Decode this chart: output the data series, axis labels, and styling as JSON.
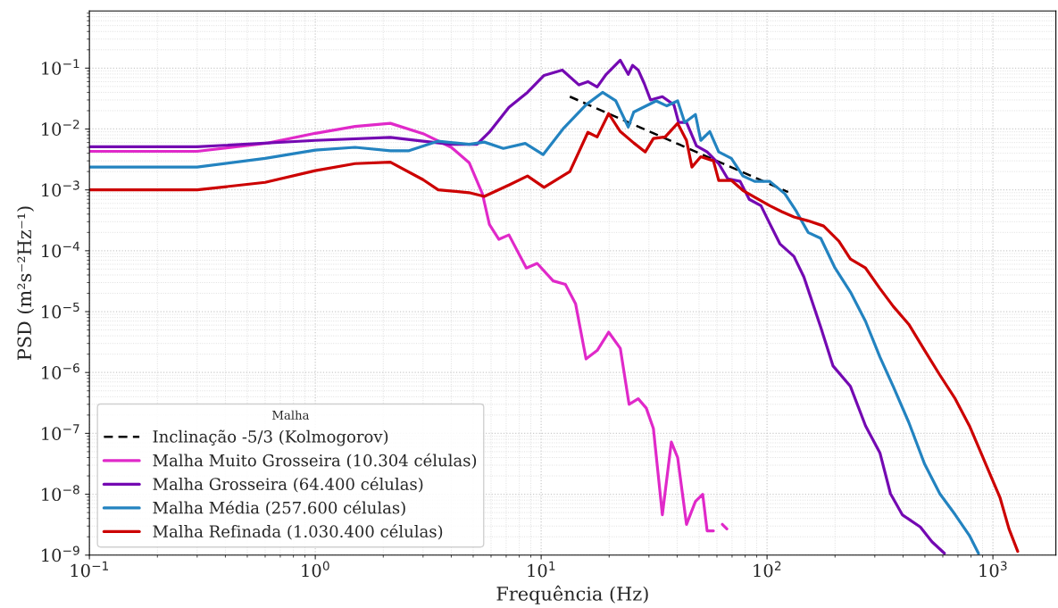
{
  "chart_data": {
    "type": "line",
    "xlabel": "Frequência (Hz)",
    "ylabel": "PSD (m²s⁻²Hz⁻¹)",
    "legend_title": "Malha",
    "legend": "bottom left",
    "grid": true,
    "log": "xy",
    "xlim": [
      0.1,
      1900
    ],
    "ylim": [
      1e-09,
      0.87
    ],
    "xticks": [
      {
        "value": 0.1,
        "label": "10$^{−1}$"
      },
      {
        "value": 1,
        "label": "10$^{0}$"
      },
      {
        "value": 10,
        "label": "10$^{1}$"
      },
      {
        "value": 100,
        "label": "10$^{2}$"
      },
      {
        "value": 1000,
        "label": "10$^{3}$"
      }
    ],
    "yticks": [
      {
        "value": 1e-09,
        "label": "10$^{−9}$"
      },
      {
        "value": 1e-08,
        "label": "10$^{−8}$"
      },
      {
        "value": 1e-07,
        "label": "10$^{−7}$"
      },
      {
        "value": 1e-06,
        "label": "10$^{−6}$"
      },
      {
        "value": 1e-05,
        "label": "10$^{−5}$"
      },
      {
        "value": 0.0001,
        "label": "10$^{−4}$"
      },
      {
        "value": 0.001,
        "label": "10$^{−3}$"
      },
      {
        "value": 0.01,
        "label": "10$^{−2}$"
      },
      {
        "value": 0.1,
        "label": "10$^{−1}$"
      }
    ],
    "series": [
      {
        "name": "Inclinação -5/3 (Kolmogorov)",
        "line_style": "dashed",
        "color": "#000000",
        "x": [
          13.4,
          124
        ],
        "values": [
          0.034,
          0.00092
        ]
      },
      {
        "name": "Malha Muito Grosseira (10.304 células)",
        "line_style": "solid",
        "color": "#e029c9",
        "x": [
          0.1,
          0.3,
          0.62,
          1.0,
          1.5,
          2.15,
          3.0,
          4.0,
          4.8,
          5.5,
          5.9,
          6.5,
          7.2,
          8.6,
          9.6,
          11.3,
          12.8,
          14.2,
          15.8,
          17.7,
          19.9,
          22.4,
          24.5,
          26.9,
          29.2,
          31.4,
          34.4,
          37.7,
          40.2,
          44.0,
          48.2,
          51.9,
          54.3,
          57.9,
          60.5,
          63.4,
          66.4
        ],
        "values": [
          0.0043,
          0.0043,
          0.0059,
          0.0085,
          0.011,
          0.0124,
          0.0084,
          0.005,
          0.0028,
          0.00085,
          0.00027,
          0.000154,
          0.000182,
          5.2e-05,
          6.2e-05,
          3.2e-05,
          2.8e-05,
          1.35e-05,
          1.67e-06,
          2.3e-06,
          4.6e-06,
          2.5e-06,
          3e-07,
          3.7e-07,
          2.6e-07,
          1.2e-07,
          4.6e-09,
          7.2e-08,
          4e-08,
          3.2e-09,
          7.6e-09,
          1e-08,
          2.5e-09,
          2.5e-09,
          null,
          3.2e-09,
          2.7e-09
        ]
      },
      {
        "name": "Malha Grosseira (64.400 células)",
        "line_style": "solid",
        "color": "#7409b2",
        "x": [
          0.1,
          0.3,
          1.0,
          2.15,
          3.0,
          4.0,
          5.2,
          5.9,
          7.2,
          8.7,
          10.3,
          12.4,
          14.7,
          16.1,
          17.7,
          19.4,
          22.4,
          24.3,
          25.4,
          26.9,
          28.6,
          30.5,
          34.4,
          38.7,
          40.6,
          44.0,
          48.7,
          54.3,
          61.1,
          67.0,
          76.0,
          83.4,
          94.0,
          102.8,
          114,
          131.5,
          145.6,
          173,
          196,
          234,
          273,
          316,
          352,
          397,
          477,
          537,
          610
        ],
        "values": [
          0.0051,
          0.0051,
          0.0065,
          0.0073,
          0.0063,
          0.0056,
          0.0056,
          0.0089,
          0.0227,
          0.04,
          0.076,
          0.093,
          0.053,
          0.06,
          0.049,
          0.079,
          0.135,
          0.079,
          0.111,
          0.093,
          0.056,
          0.03,
          0.034,
          0.025,
          0.0128,
          0.0128,
          0.0053,
          0.0042,
          0.0027,
          0.00152,
          0.00138,
          0.0007,
          0.00055,
          0.00028,
          0.00013,
          8.1e-05,
          3.7e-05,
          5.5e-06,
          1.28e-06,
          5.9e-07,
          1.33e-07,
          4.8e-08,
          1.02e-08,
          4.6e-09,
          2.9e-09,
          1.66e-09,
          1.07e-09
        ]
      },
      {
        "name": "Malha Média (257.600 células)",
        "line_style": "solid",
        "color": "#2383c0",
        "x": [
          0.1,
          0.3,
          0.6,
          1.0,
          1.5,
          2.15,
          2.6,
          3.48,
          4.8,
          5.6,
          6.8,
          8.5,
          10.2,
          12.6,
          15.8,
          18.7,
          21.4,
          24.3,
          25.7,
          32.3,
          36.0,
          40.2,
          43.2,
          48.2,
          50.9,
          55.8,
          61.1,
          69.5,
          78.2,
          88.1,
          102.8,
          120,
          135,
          152,
          173,
          200,
          234,
          273,
          316,
          362,
          424,
          499,
          582,
          681,
          787,
          863
        ],
        "values": [
          0.00237,
          0.00237,
          0.0033,
          0.0045,
          0.005,
          0.0044,
          0.0044,
          0.0063,
          0.0056,
          0.0061,
          0.0048,
          0.0058,
          0.0038,
          0.0104,
          0.025,
          0.04,
          0.029,
          0.0108,
          0.019,
          0.029,
          0.024,
          0.029,
          0.0128,
          0.0173,
          0.0065,
          0.0091,
          0.0042,
          0.0033,
          0.00169,
          0.00138,
          0.00138,
          0.00086,
          0.00044,
          0.0002,
          0.00016,
          5.2e-05,
          2.1e-05,
          6.9e-06,
          1.8e-06,
          5.9e-07,
          1.52e-07,
          3.1e-08,
          1.02e-08,
          4.6e-09,
          2.1e-09,
          1.07e-09
        ]
      },
      {
        "name": "Malha Refinada (1.030.400 células)",
        "line_style": "solid",
        "color": "#cc0000",
        "x": [
          0.1,
          0.3,
          0.6,
          1.0,
          1.5,
          2.15,
          3.0,
          3.5,
          4.8,
          5.6,
          7.2,
          8.7,
          10.3,
          13.4,
          16.1,
          17.7,
          19.9,
          22.4,
          25.7,
          28.9,
          31.4,
          35.4,
          40.2,
          44.0,
          46.5,
          50.9,
          57.9,
          61.1,
          69.5,
          78.2,
          91.4,
          102.8,
          116,
          131.5,
          152,
          178,
          208,
          234,
          273,
          316,
          362,
          424,
          499,
          582,
          681,
          787,
          904,
          1074,
          1178,
          1288
        ],
        "values": [
          0.001,
          0.001,
          0.00133,
          0.00207,
          0.0027,
          0.00285,
          0.00147,
          0.001,
          0.0009,
          0.00078,
          0.0012,
          0.00169,
          0.0011,
          0.002,
          0.0088,
          0.0074,
          0.0179,
          0.0091,
          0.0059,
          0.0042,
          0.007,
          0.0074,
          0.0124,
          0.0065,
          0.00237,
          0.0035,
          0.003,
          0.00143,
          0.00143,
          0.00098,
          0.0007,
          0.00055,
          0.00044,
          0.00036,
          0.00031,
          0.000255,
          0.000144,
          7.3e-05,
          5.2e-05,
          2.4e-05,
          1.22e-05,
          6.2e-06,
          2.3e-06,
          9.1e-07,
          3.7e-07,
          1.33e-07,
          4e-08,
          8.9e-09,
          2.7e-09,
          1.15e-09
        ]
      }
    ]
  }
}
